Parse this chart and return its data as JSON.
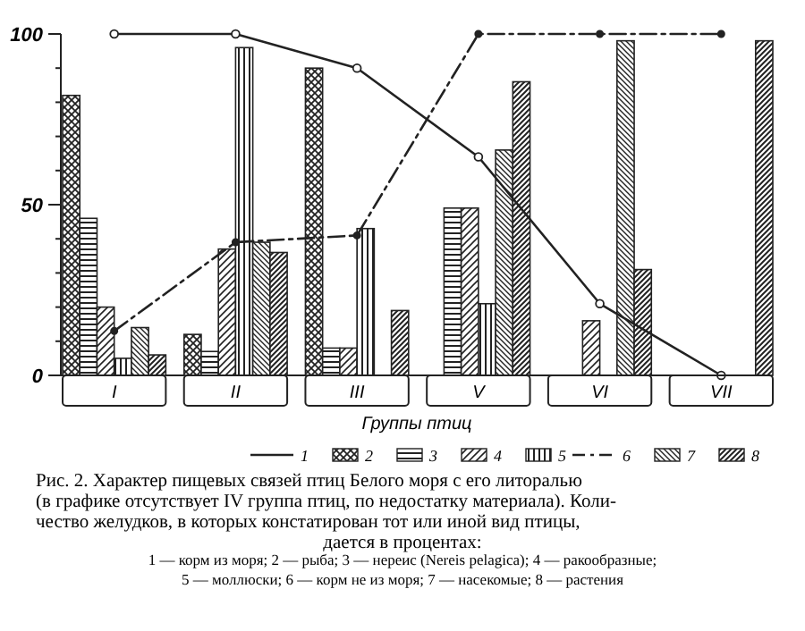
{
  "chart_data": {
    "type": "bar",
    "xlabel": "Группы птиц",
    "categories": [
      "I",
      "II",
      "III",
      "V",
      "VI",
      "VII"
    ],
    "ylim": [
      0,
      100
    ],
    "yticks": [
      0,
      {
        "value": 10,
        "label": null
      },
      {
        "value": 20,
        "label": null
      },
      {
        "value": 30,
        "label": null
      },
      {
        "value": 40,
        "label": null
      },
      50,
      {
        "value": 60,
        "label": null
      },
      {
        "value": 70,
        "label": null
      },
      {
        "value": 80,
        "label": null
      },
      {
        "value": 90,
        "label": null
      },
      100
    ],
    "legend": "bottom",
    "grid": false,
    "series": [
      {
        "name": "1",
        "type": "line",
        "color": "#222222",
        "marker": "circle",
        "line_style": "solid",
        "values": [
          100,
          100,
          90,
          64,
          21,
          0
        ]
      },
      {
        "name": "2",
        "color": "#222222",
        "values": [
          82,
          12,
          90,
          null,
          null,
          null
        ]
      },
      {
        "name": "3",
        "color": "#222222",
        "values": [
          46,
          7,
          8,
          49,
          null,
          null
        ]
      },
      {
        "name": "4",
        "color": "#222222",
        "values": [
          20,
          37,
          8,
          49,
          16,
          null
        ]
      },
      {
        "name": "5",
        "color": "#222222",
        "values": [
          5,
          96,
          43,
          21,
          null,
          null
        ]
      },
      {
        "name": "6",
        "type": "line",
        "color": "#222222",
        "marker": "circle",
        "line_style": "dashed",
        "values": [
          13,
          39,
          41,
          100,
          100,
          100
        ]
      },
      {
        "name": "7",
        "color": "#222222",
        "values": [
          14,
          39,
          null,
          66,
          98,
          null
        ]
      },
      {
        "name": "8",
        "color": "#222222",
        "values": [
          6,
          36,
          19,
          86,
          31,
          98
        ]
      }
    ],
    "annotations": [
      "Рис. 2. Характер пищевых связей птиц Белого моря с его литоралью",
      "(в графике отсутствует IV группа птиц, по недостатку материала). Коли-",
      "чество желудков, в которых констатирован тот или иной вид птицы,",
      "дается в процентах:",
      "1 — корм из моря; 2 — рыба; 3 — нереис (Nereis pelagica); 4 — ракообразные;",
      "5 — моллюски; 6 — корм не из моря; 7 — насекомые; 8 — растения"
    ]
  }
}
